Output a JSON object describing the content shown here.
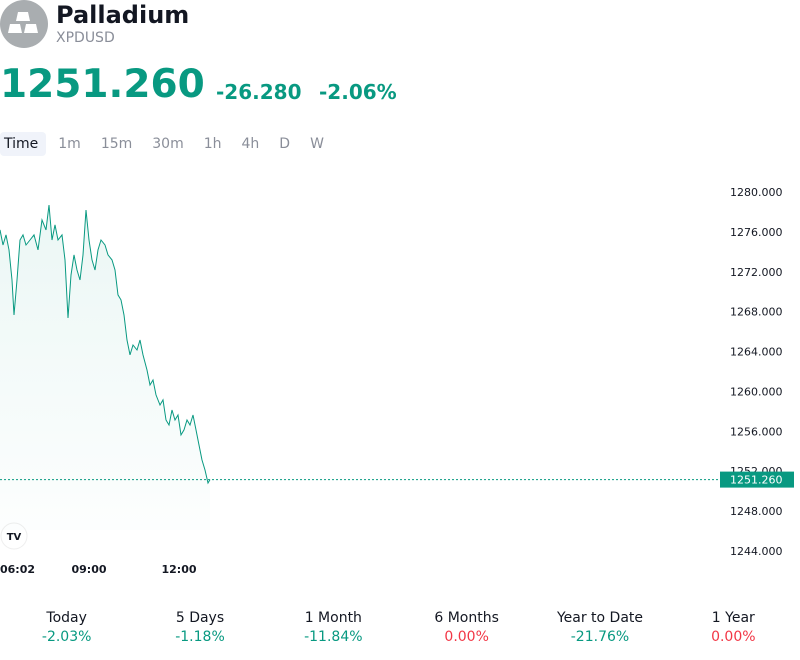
{
  "header": {
    "name": "Palladium",
    "symbol": "XPDUSD",
    "price": "1251.260",
    "change": "-26.280",
    "change_percent": "-2.06%"
  },
  "tabs": {
    "items": [
      "Time",
      "1m",
      "15m",
      "30m",
      "1h",
      "4h",
      "D",
      "W"
    ],
    "active": "Time"
  },
  "chart_data": {
    "type": "line",
    "color": "#089981",
    "x": [
      "06:02",
      "06:08",
      "06:14",
      "06:20",
      "06:26",
      "06:30",
      "06:36",
      "06:42",
      "06:48",
      "06:54",
      "07:02",
      "07:10",
      "07:18",
      "07:26",
      "07:34",
      "07:40",
      "07:46",
      "07:52",
      "07:58",
      "08:06",
      "08:12",
      "08:18",
      "08:24",
      "08:30",
      "08:36",
      "08:42",
      "08:48",
      "08:54",
      "09:00",
      "09:06",
      "09:12",
      "09:18",
      "09:24",
      "09:32",
      "09:38",
      "09:46",
      "09:52",
      "09:58",
      "10:04",
      "10:10",
      "10:16",
      "10:22",
      "10:28",
      "10:36",
      "10:42",
      "10:48",
      "10:56",
      "11:02",
      "11:08",
      "11:14",
      "11:22",
      "11:28",
      "11:34",
      "11:40",
      "11:46",
      "11:52",
      "11:58",
      "12:04",
      "12:10",
      "12:16",
      "12:22",
      "12:28",
      "12:34",
      "12:40",
      "12:46",
      "12:52",
      "12:58",
      "13:02"
    ],
    "values": [
      1276.3,
      1274.79,
      1275.8,
      1274.29,
      1271.28,
      1267.77,
      1271.28,
      1275.29,
      1275.8,
      1274.79,
      1275.29,
      1275.8,
      1274.29,
      1277.3,
      1276.3,
      1278.8,
      1275.29,
      1276.8,
      1275.29,
      1275.8,
      1273.29,
      1267.47,
      1271.78,
      1273.79,
      1272.28,
      1271.28,
      1273.79,
      1278.3,
      1275.29,
      1273.29,
      1272.28,
      1274.29,
      1275.29,
      1274.79,
      1273.79,
      1273.29,
      1272.28,
      1269.78,
      1269.28,
      1267.77,
      1265.26,
      1263.76,
      1264.76,
      1264.26,
      1265.26,
      1263.76,
      1262.25,
      1260.75,
      1261.25,
      1259.75,
      1258.74,
      1259.25,
      1257.24,
      1256.74,
      1258.24,
      1257.24,
      1257.74,
      1255.74,
      1256.24,
      1257.24,
      1256.74,
      1257.74,
      1256.24,
      1254.73,
      1253.23,
      1252.22,
      1250.92,
      1251.26
    ],
    "xlim": [
      "06:02",
      "23:59"
    ],
    "xticks": [
      "06:02",
      "09:00",
      "12:00"
    ],
    "ylim": [
      1244,
      1280
    ],
    "yticks": [
      {
        "value": 1244,
        "label": "1244.000"
      },
      {
        "value": 1248,
        "label": "1248.000"
      },
      {
        "value": 1252,
        "label": "1252.000"
      },
      {
        "value": 1256,
        "label": "1256.000"
      },
      {
        "value": 1260,
        "label": "1260.000"
      },
      {
        "value": 1264,
        "label": "1264.000"
      },
      {
        "value": 1268,
        "label": "1268.000"
      },
      {
        "value": 1272,
        "label": "1272.000"
      },
      {
        "value": 1276,
        "label": "1276.000"
      },
      {
        "value": 1280,
        "label": "1280.000"
      }
    ],
    "last_price": {
      "value": 1251.26,
      "label": "1251.260"
    }
  },
  "periods": [
    {
      "label": "Today",
      "change": "-2.03%",
      "color": "#089981"
    },
    {
      "label": "5 Days",
      "change": "-1.18%",
      "color": "#089981"
    },
    {
      "label": "1 Month",
      "change": "-11.84%",
      "color": "#089981"
    },
    {
      "label": "6 Months",
      "change": "0.00%",
      "color": "#f23645"
    },
    {
      "label": "Year to Date",
      "change": "-21.76%",
      "color": "#089981"
    },
    {
      "label": "1 Year",
      "change": "0.00%",
      "color": "#f23645"
    }
  ]
}
